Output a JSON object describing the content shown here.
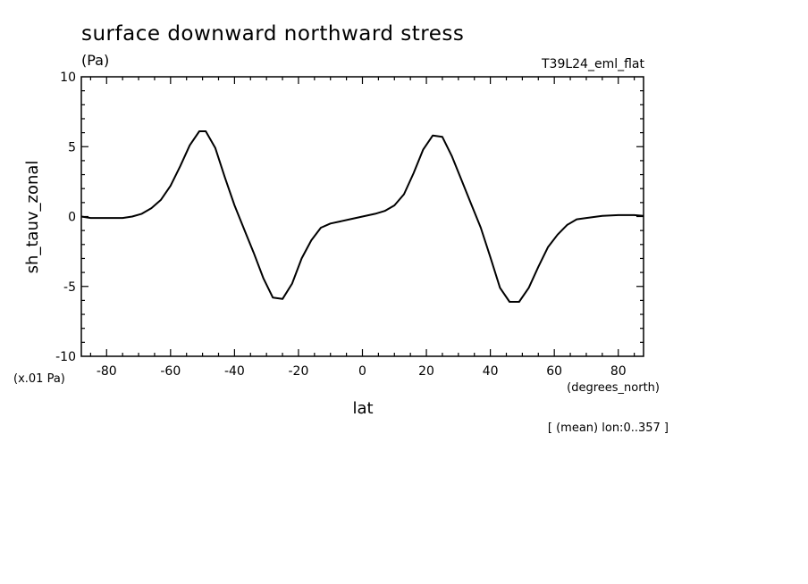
{
  "chart_data": {
    "type": "line",
    "title": "surface downward northward stress",
    "units": "(Pa)",
    "run_label": "T39L24_eml_flat",
    "ylabel": "sh_tauv_zonal",
    "xlabel": "lat",
    "x_units": "(degrees_north)",
    "y_scale_note": "(x.01 Pa)",
    "footnote": "[ (mean) lon:0..357 ]",
    "xlim": [
      -87.9,
      87.9
    ],
    "ylim": [
      -10,
      10
    ],
    "x_ticks": [
      -80,
      -60,
      -40,
      -20,
      0,
      20,
      40,
      60,
      80
    ],
    "y_ticks": [
      10,
      5,
      0,
      -5,
      -10
    ],
    "x_tick_labels": [
      "-80",
      "-60",
      "-40",
      "-20",
      "0",
      "20",
      "40",
      "60",
      "80"
    ],
    "y_tick_labels": [
      "10",
      "5",
      "0",
      "-5",
      "-10"
    ],
    "grid": false,
    "series": [
      {
        "x": [
          -87.9,
          -85,
          -80,
          -75,
          -72,
          -69,
          -66,
          -63,
          -60,
          -57,
          -54,
          -51,
          -49,
          -46,
          -43,
          -40,
          -37,
          -34,
          -31,
          -28,
          -25,
          -22,
          -19,
          -16,
          -13,
          -10,
          -7,
          -4,
          0,
          4,
          7,
          10,
          13,
          16,
          19,
          22,
          25,
          28,
          31,
          34,
          37,
          40,
          43,
          46,
          49,
          52,
          55,
          58,
          61,
          64,
          67,
          70,
          75,
          80,
          85,
          87.9
        ],
        "y": [
          0.0,
          -0.1,
          -0.1,
          -0.1,
          0.0,
          0.2,
          0.6,
          1.2,
          2.2,
          3.6,
          5.1,
          6.1,
          6.1,
          4.9,
          2.8,
          0.8,
          -0.9,
          -2.6,
          -4.4,
          -5.8,
          -5.9,
          -4.8,
          -3.0,
          -1.7,
          -0.8,
          -0.5,
          -0.35,
          -0.2,
          0.0,
          0.2,
          0.4,
          0.8,
          1.6,
          3.1,
          4.8,
          5.8,
          5.7,
          4.3,
          2.6,
          0.9,
          -0.8,
          -2.9,
          -5.1,
          -6.1,
          -6.1,
          -5.1,
          -3.6,
          -2.2,
          -1.3,
          -0.6,
          -0.2,
          -0.1,
          0.05,
          0.1,
          0.1,
          0.05
        ]
      }
    ]
  }
}
